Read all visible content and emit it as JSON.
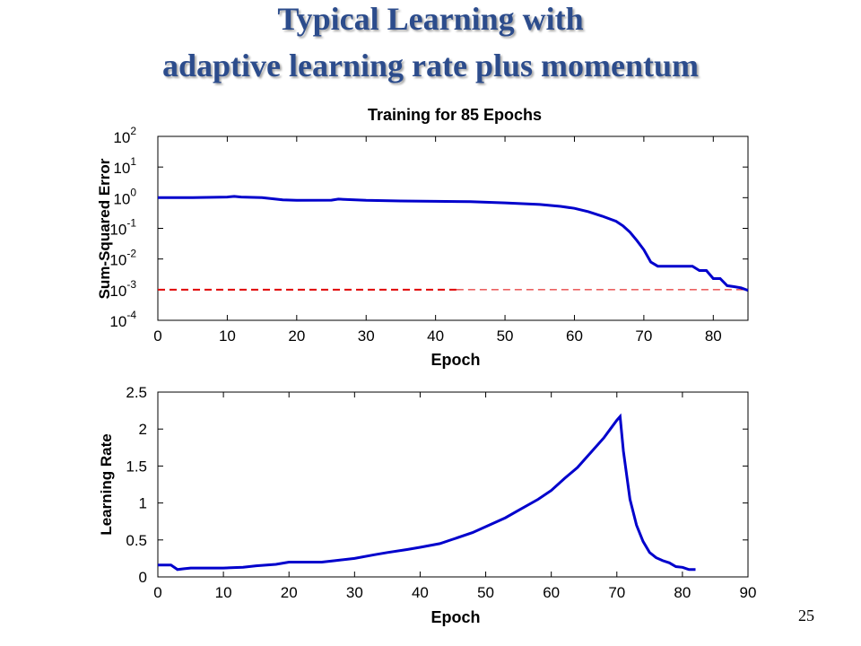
{
  "slide": {
    "title_line1": "Typical Learning with",
    "title_line2": "adaptive learning rate plus momentum",
    "title_color": "#2c4c8c",
    "page_number": "25"
  },
  "chart_data": [
    {
      "type": "line",
      "title": "Training for 85 Epochs",
      "xlabel": "Epoch",
      "ylabel": "Sum-Squared Error",
      "yscale": "log",
      "xlim": [
        0,
        85
      ],
      "ylim": [
        0.0001,
        100
      ],
      "xticks": [
        "0",
        "10",
        "20",
        "30",
        "40",
        "50",
        "60",
        "70",
        "80"
      ],
      "yticks": [
        {
          "base": "10",
          "exp": "2"
        },
        {
          "base": "10",
          "exp": "1"
        },
        {
          "base": "10",
          "exp": "0"
        },
        {
          "base": "10",
          "exp": "-1"
        },
        {
          "base": "10",
          "exp": "-2"
        },
        {
          "base": "10",
          "exp": "-3"
        },
        {
          "base": "10",
          "exp": "-4"
        }
      ],
      "goal": 0.001,
      "goal_color": "#e00000",
      "line_color": "#0000cc",
      "x": [
        0,
        5,
        10,
        11,
        12,
        15,
        18,
        20,
        25,
        26,
        30,
        35,
        40,
        45,
        50,
        55,
        58,
        60,
        62,
        64,
        66,
        67,
        68,
        69,
        70,
        71,
        72,
        73,
        74,
        75,
        76,
        77,
        78,
        79,
        80,
        81,
        82,
        83,
        84,
        85
      ],
      "y": [
        1.0,
        1.0,
        1.05,
        1.1,
        1.05,
        1.0,
        0.85,
        0.82,
        0.83,
        0.9,
        0.82,
        0.78,
        0.76,
        0.74,
        0.68,
        0.6,
        0.52,
        0.45,
        0.35,
        0.25,
        0.17,
        0.12,
        0.075,
        0.04,
        0.02,
        0.008,
        0.0058,
        0.0058,
        0.0058,
        0.0058,
        0.0058,
        0.0058,
        0.0042,
        0.0042,
        0.0023,
        0.0023,
        0.00135,
        0.00125,
        0.00115,
        0.00095
      ]
    },
    {
      "type": "line",
      "xlabel": "Epoch",
      "ylabel": "Learning Rate",
      "xlim": [
        0,
        90
      ],
      "ylim": [
        0,
        2.5
      ],
      "xticks": [
        "0",
        "10",
        "20",
        "30",
        "40",
        "50",
        "60",
        "70",
        "80",
        "90"
      ],
      "yticks": [
        "2.5",
        "2",
        "1.5",
        "1",
        "0.5",
        "0"
      ],
      "line_color": "#0000cc",
      "x": [
        0,
        1,
        2,
        3,
        4,
        5,
        10,
        13,
        15,
        18,
        20,
        25,
        27,
        30,
        33,
        35,
        38,
        40,
        43,
        45,
        48,
        50,
        53,
        55,
        58,
        60,
        62,
        64,
        66,
        68,
        69,
        70,
        70.5,
        71,
        72,
        73,
        74,
        75,
        76,
        77,
        78,
        79,
        80,
        81,
        82
      ],
      "y": [
        0.16,
        0.16,
        0.16,
        0.1,
        0.11,
        0.12,
        0.12,
        0.13,
        0.15,
        0.17,
        0.2,
        0.2,
        0.22,
        0.25,
        0.3,
        0.33,
        0.37,
        0.4,
        0.45,
        0.51,
        0.6,
        0.68,
        0.8,
        0.9,
        1.05,
        1.17,
        1.33,
        1.48,
        1.68,
        1.88,
        2.0,
        2.12,
        2.17,
        1.7,
        1.05,
        0.7,
        0.48,
        0.33,
        0.26,
        0.22,
        0.19,
        0.14,
        0.13,
        0.1,
        0.1
      ]
    }
  ]
}
